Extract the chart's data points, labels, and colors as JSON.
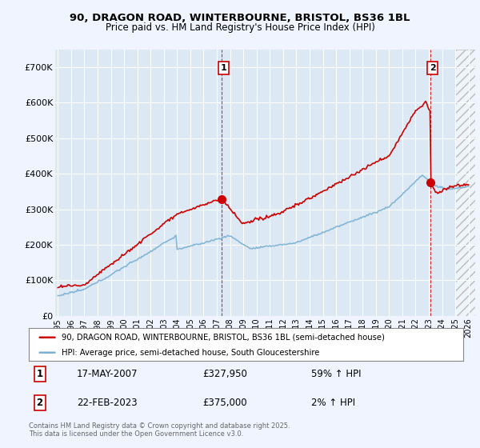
{
  "title_line1": "90, DRAGON ROAD, WINTERBOURNE, BRISTOL, BS36 1BL",
  "title_line2": "Price paid vs. HM Land Registry's House Price Index (HPI)",
  "ylim": [
    0,
    750000
  ],
  "yticks": [
    0,
    100000,
    200000,
    300000,
    400000,
    500000,
    600000,
    700000
  ],
  "ytick_labels": [
    "£0",
    "£100K",
    "£200K",
    "£300K",
    "£400K",
    "£500K",
    "£600K",
    "£700K"
  ],
  "background_color": "#dce9f5",
  "fig_bg_color": "#f0f4ff",
  "grid_color": "#ffffff",
  "red_line_color": "#cc0000",
  "blue_line_color": "#7ab0d4",
  "annotation_1_date": "17-MAY-2007",
  "annotation_1_price": "£327,950",
  "annotation_1_hpi": "59% ↑ HPI",
  "annotation_2_date": "22-FEB-2023",
  "annotation_2_price": "£375,000",
  "annotation_2_hpi": "2% ↑ HPI",
  "legend_line1": "90, DRAGON ROAD, WINTERBOURNE, BRISTOL, BS36 1BL (semi-detached house)",
  "legend_line2": "HPI: Average price, semi-detached house, South Gloucestershire",
  "footer": "Contains HM Land Registry data © Crown copyright and database right 2025.\nThis data is licensed under the Open Government Licence v3.0.",
  "sale1_year": 2007.38,
  "sale1_price": 327950,
  "sale2_year": 2023.14,
  "sale2_price": 375000,
  "xmin": 1995,
  "xmax": 2026
}
